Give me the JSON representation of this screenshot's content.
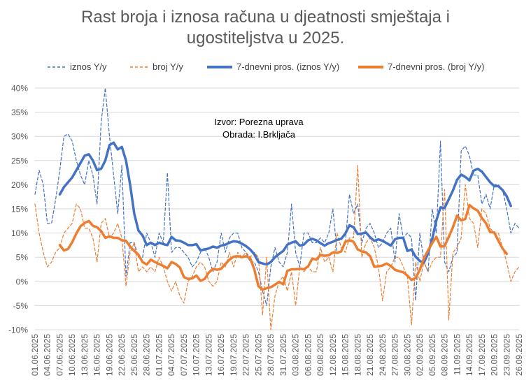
{
  "chart_data": {
    "type": "line",
    "title_lines": [
      "Rast broja i iznosa računa u djeatnosti smještaja i",
      "ugostiteljstva u 2025."
    ],
    "annotation": [
      "Izvor: Porezna uprava",
      "Obrada: I.Brkljača"
    ],
    "ylim": [
      -10,
      40
    ],
    "yticks": [
      -10,
      -5,
      0,
      5,
      10,
      15,
      20,
      25,
      30,
      35,
      40
    ],
    "yticklabels": [
      "-10%",
      "-5%",
      "0%",
      "5%",
      "10%",
      "15%",
      "20%",
      "25%",
      "30%",
      "35%",
      "40%"
    ],
    "x_start": "01.06.2025",
    "x_end": "26.09.2025",
    "xticklabels": [
      "01.06.2025",
      "04.06.2025",
      "07.06.2025",
      "10.06.2025",
      "13.06.2025",
      "16.06.2025",
      "19.06.2025",
      "22.06.2025",
      "25.06.2025",
      "28.06.2025",
      "01.07.2025",
      "04.07.2025",
      "07.07.2025",
      "10.07.2025",
      "13.07.2025",
      "16.07.2025",
      "19.07.2025",
      "22.07.2025",
      "25.07.2025",
      "28.07.2025",
      "31.07.2025",
      "03.08.2025",
      "06.08.2025",
      "09.08.2025",
      "12.08.2025",
      "15.08.2025",
      "18.08.2025",
      "21.08.2025",
      "24.08.2025",
      "27.08.2025",
      "30.08.2025",
      "02.09.2025",
      "05.09.2025",
      "08.09.2025",
      "11.09.2025",
      "14.09.2025",
      "17.09.2025",
      "20.09.2025",
      "23.09.2025",
      "26.09.2025"
    ],
    "grid": true,
    "legend_position": "top",
    "series": [
      {
        "name": "iznos Y/y",
        "color": "#4472C4",
        "style": "dashed",
        "width": 1.2,
        "start_index": 0,
        "values": [
          18,
          23,
          20,
          12,
          12,
          17,
          23,
          30,
          30.5,
          29,
          25,
          22,
          20,
          25,
          22,
          16,
          33,
          40,
          30,
          22,
          14,
          24,
          1,
          8,
          8,
          5,
          5,
          10,
          8,
          5,
          10,
          8,
          22.5,
          6,
          7,
          7,
          6,
          5,
          3,
          4,
          6,
          7,
          5,
          2,
          4,
          10,
          6,
          9,
          10,
          10,
          7,
          6,
          4,
          4,
          2,
          -2,
          -5,
          3,
          7,
          4,
          3,
          6,
          16,
          6,
          3,
          10,
          10,
          8,
          8,
          9,
          8,
          10,
          15,
          6,
          6,
          8,
          18,
          14,
          16,
          8,
          11,
          12,
          10,
          7,
          8,
          10,
          11,
          4,
          14,
          9,
          10,
          9,
          -4,
          10,
          4,
          2,
          15,
          10,
          29,
          4,
          2,
          5,
          6,
          27,
          28,
          26,
          22,
          22,
          16,
          18,
          15,
          20,
          20,
          19,
          15,
          10,
          12,
          11
        ]
      },
      {
        "name": "broj Y/y",
        "color": "#ED7D31",
        "style": "dashed",
        "width": 1.2,
        "start_index": 0,
        "values": [
          16,
          10,
          6,
          3,
          4,
          6,
          7,
          10,
          11,
          12,
          16,
          15,
          11,
          11,
          9,
          4,
          12,
          13,
          9,
          10,
          12,
          9,
          -1,
          6,
          8,
          2,
          3,
          2,
          3,
          2,
          5,
          3,
          0,
          -2,
          0,
          -3,
          -4.5,
          0,
          1,
          3,
          4,
          3,
          0,
          -1,
          0,
          4,
          3,
          6,
          3,
          6,
          5,
          6,
          5,
          6,
          5,
          -7,
          5,
          -10,
          -3,
          0,
          1,
          -2,
          2,
          -5,
          3,
          2,
          3,
          2,
          2,
          7,
          4,
          5,
          2,
          10,
          7,
          6,
          9,
          9,
          24,
          5,
          8,
          9,
          7,
          3,
          -4,
          2,
          3,
          5,
          5,
          3,
          1,
          -9,
          4,
          0,
          4,
          2,
          4,
          5,
          5,
          19,
          -8,
          6,
          7,
          9,
          20,
          13,
          12,
          7,
          15,
          14,
          11,
          10,
          10,
          7,
          4,
          0,
          2,
          3
        ]
      },
      {
        "name": "7-dnevni pros. (iznos Y/y)",
        "color": "#4472C4",
        "style": "solid",
        "width": 3.5,
        "start_index": 6,
        "values": [
          18,
          19.5,
          20.5,
          21.5,
          23,
          24.5,
          26,
          26.3,
          25,
          23,
          23.3,
          25,
          28.2,
          28.7,
          27.3,
          27.8,
          25,
          20,
          14,
          10.5,
          9.5,
          7.5,
          8,
          7.5,
          8,
          7.7,
          7.5,
          9.2,
          8.5,
          8.4,
          8,
          7.5,
          7.5,
          7.7,
          6.4,
          6.6,
          6.8,
          7.2,
          7.0,
          7.4,
          7.6,
          8.0,
          8.3,
          8.2,
          7.8,
          7.3,
          6.6,
          5.6,
          4.0,
          3.7,
          3.5,
          4.0,
          5.0,
          5.7,
          6.3,
          7.6,
          8.0,
          8.3,
          7.4,
          7.6,
          8.5,
          8.8,
          8.5,
          7.9,
          7.4,
          7.9,
          8.2,
          8.6,
          8.8,
          9.9,
          11.6,
          11.2,
          9.8,
          9.9,
          10.1,
          9.1,
          8.4,
          8.7,
          8.4,
          7.9,
          7.4,
          8.7,
          9.0,
          9.0,
          6.3,
          6.6,
          5.1,
          4.2,
          3.9,
          5.8,
          8.8,
          12.6,
          15.3,
          15.2,
          17.0,
          18.8,
          21.0,
          22.1,
          21.6,
          20.9,
          22.9,
          23.3,
          22.7,
          21.6,
          20.5,
          19.7,
          19.7,
          18.9,
          17.6,
          15.6
        ]
      },
      {
        "name": "7-dnevni pros. (broj Y/y)",
        "color": "#ED7D31",
        "style": "solid",
        "width": 3.5,
        "start_index": 6,
        "values": [
          7.5,
          6.4,
          6.7,
          8.1,
          9.9,
          11.4,
          12.1,
          12.5,
          11.5,
          11.2,
          10.4,
          9.0,
          9.3,
          9.0,
          9.0,
          8.5,
          8.4,
          7.2,
          6.3,
          5.5,
          4.0,
          3.5,
          4.5,
          4.0,
          3.6,
          3.2,
          2.7,
          4.0,
          3.6,
          2.9,
          0.9,
          0.5,
          0.6,
          1.2,
          0.1,
          0.5,
          1.8,
          2.6,
          2.4,
          2.6,
          3.6,
          4.5,
          5.1,
          5.2,
          5.0,
          5.2,
          4.8,
          2.5,
          -1.0,
          -1.7,
          -1.4,
          -1.2,
          -0.7,
          -0.1,
          -0.6,
          2.2,
          2.5,
          2.5,
          2.6,
          2.5,
          3.1,
          4.7,
          4.5,
          5.5,
          5.3,
          5.4,
          6.0,
          5.9,
          6.2,
          8.2,
          8.5,
          8.2,
          6.6,
          6.2,
          6.0,
          5.2,
          3.0,
          3.1,
          3.3,
          3.7,
          3.2,
          2.4,
          2.1,
          1.9,
          1.2,
          0.3,
          0.7,
          2.4,
          4.8,
          6.4,
          7.9,
          9.2,
          7.2,
          7.3,
          9.2,
          11.2,
          13.6,
          12.6,
          12.9,
          15.8,
          15.1,
          14.6,
          13.1,
          12.0,
          10.2,
          10.1,
          8.4,
          6.8,
          5.7
        ]
      }
    ]
  }
}
